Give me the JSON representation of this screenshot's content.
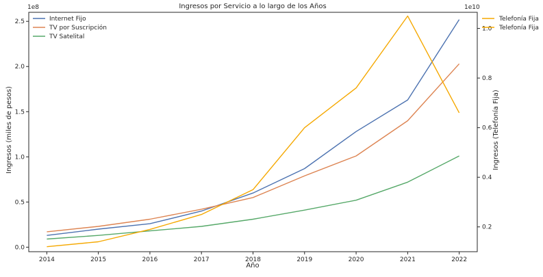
{
  "chart_data": {
    "type": "line",
    "title": "Ingresos por Servicio a lo largo de los Años",
    "xlabel": "Año",
    "ylabel_left": "Ingresos (miles de pesos)",
    "ylabel_right": "Ingresos (Telefonía Fija)",
    "left_offset_text": "1e8",
    "right_offset_text": "1e10",
    "x": [
      2014,
      2015,
      2016,
      2017,
      2018,
      2019,
      2020,
      2021,
      2022
    ],
    "x_ticks": [
      "2014",
      "2015",
      "2016",
      "2017",
      "2018",
      "2019",
      "2020",
      "2021",
      "2022"
    ],
    "xlim": [
      2013.65,
      2022.35
    ],
    "ylim_left": [
      -0.05,
      2.6
    ],
    "yticks_left": [
      "0.0",
      "0.5",
      "1.0",
      "1.5",
      "2.0",
      "2.5"
    ],
    "yticks_left_values": [
      0.0,
      0.5,
      1.0,
      1.5,
      2.0,
      2.5
    ],
    "ylim_right": [
      0.1,
      1.065
    ],
    "yticks_right": [
      "0.2",
      "0.4",
      "0.6",
      "0.8",
      "1.0"
    ],
    "yticks_right_values": [
      0.2,
      0.4,
      0.6,
      0.8,
      1.0
    ],
    "grid": false,
    "series": [
      {
        "name": "Internet Fijo",
        "axis": "left",
        "color": "#4c72b0",
        "values": [
          0.13,
          0.2,
          0.26,
          0.4,
          0.6,
          0.87,
          1.28,
          1.63,
          2.52
        ]
      },
      {
        "name": "TV por Suscripción",
        "axis": "left",
        "color": "#dd8452",
        "values": [
          0.17,
          0.23,
          0.31,
          0.42,
          0.55,
          0.79,
          1.01,
          1.4,
          2.03
        ]
      },
      {
        "name": "TV Satelital",
        "axis": "left",
        "color": "#55a868",
        "values": [
          0.09,
          0.13,
          0.18,
          0.23,
          0.31,
          0.41,
          0.52,
          0.72,
          1.01
        ]
      },
      {
        "name": "Telefonía Fija",
        "axis": "right",
        "color": "#f5a800",
        "values": [
          0.12,
          0.14,
          0.19,
          0.25,
          0.35,
          0.6,
          0.76,
          1.05,
          0.66
        ]
      }
    ],
    "legend_left": [
      "Internet Fijo",
      "TV por Suscripción",
      "TV Satelital"
    ],
    "legend_right": [
      "Telefonía Fija",
      "Telefonía Fija"
    ],
    "legend_right_color": "#f5a800",
    "legend_left_placement": "top-left",
    "legend_right_placement": "outside top-right"
  }
}
